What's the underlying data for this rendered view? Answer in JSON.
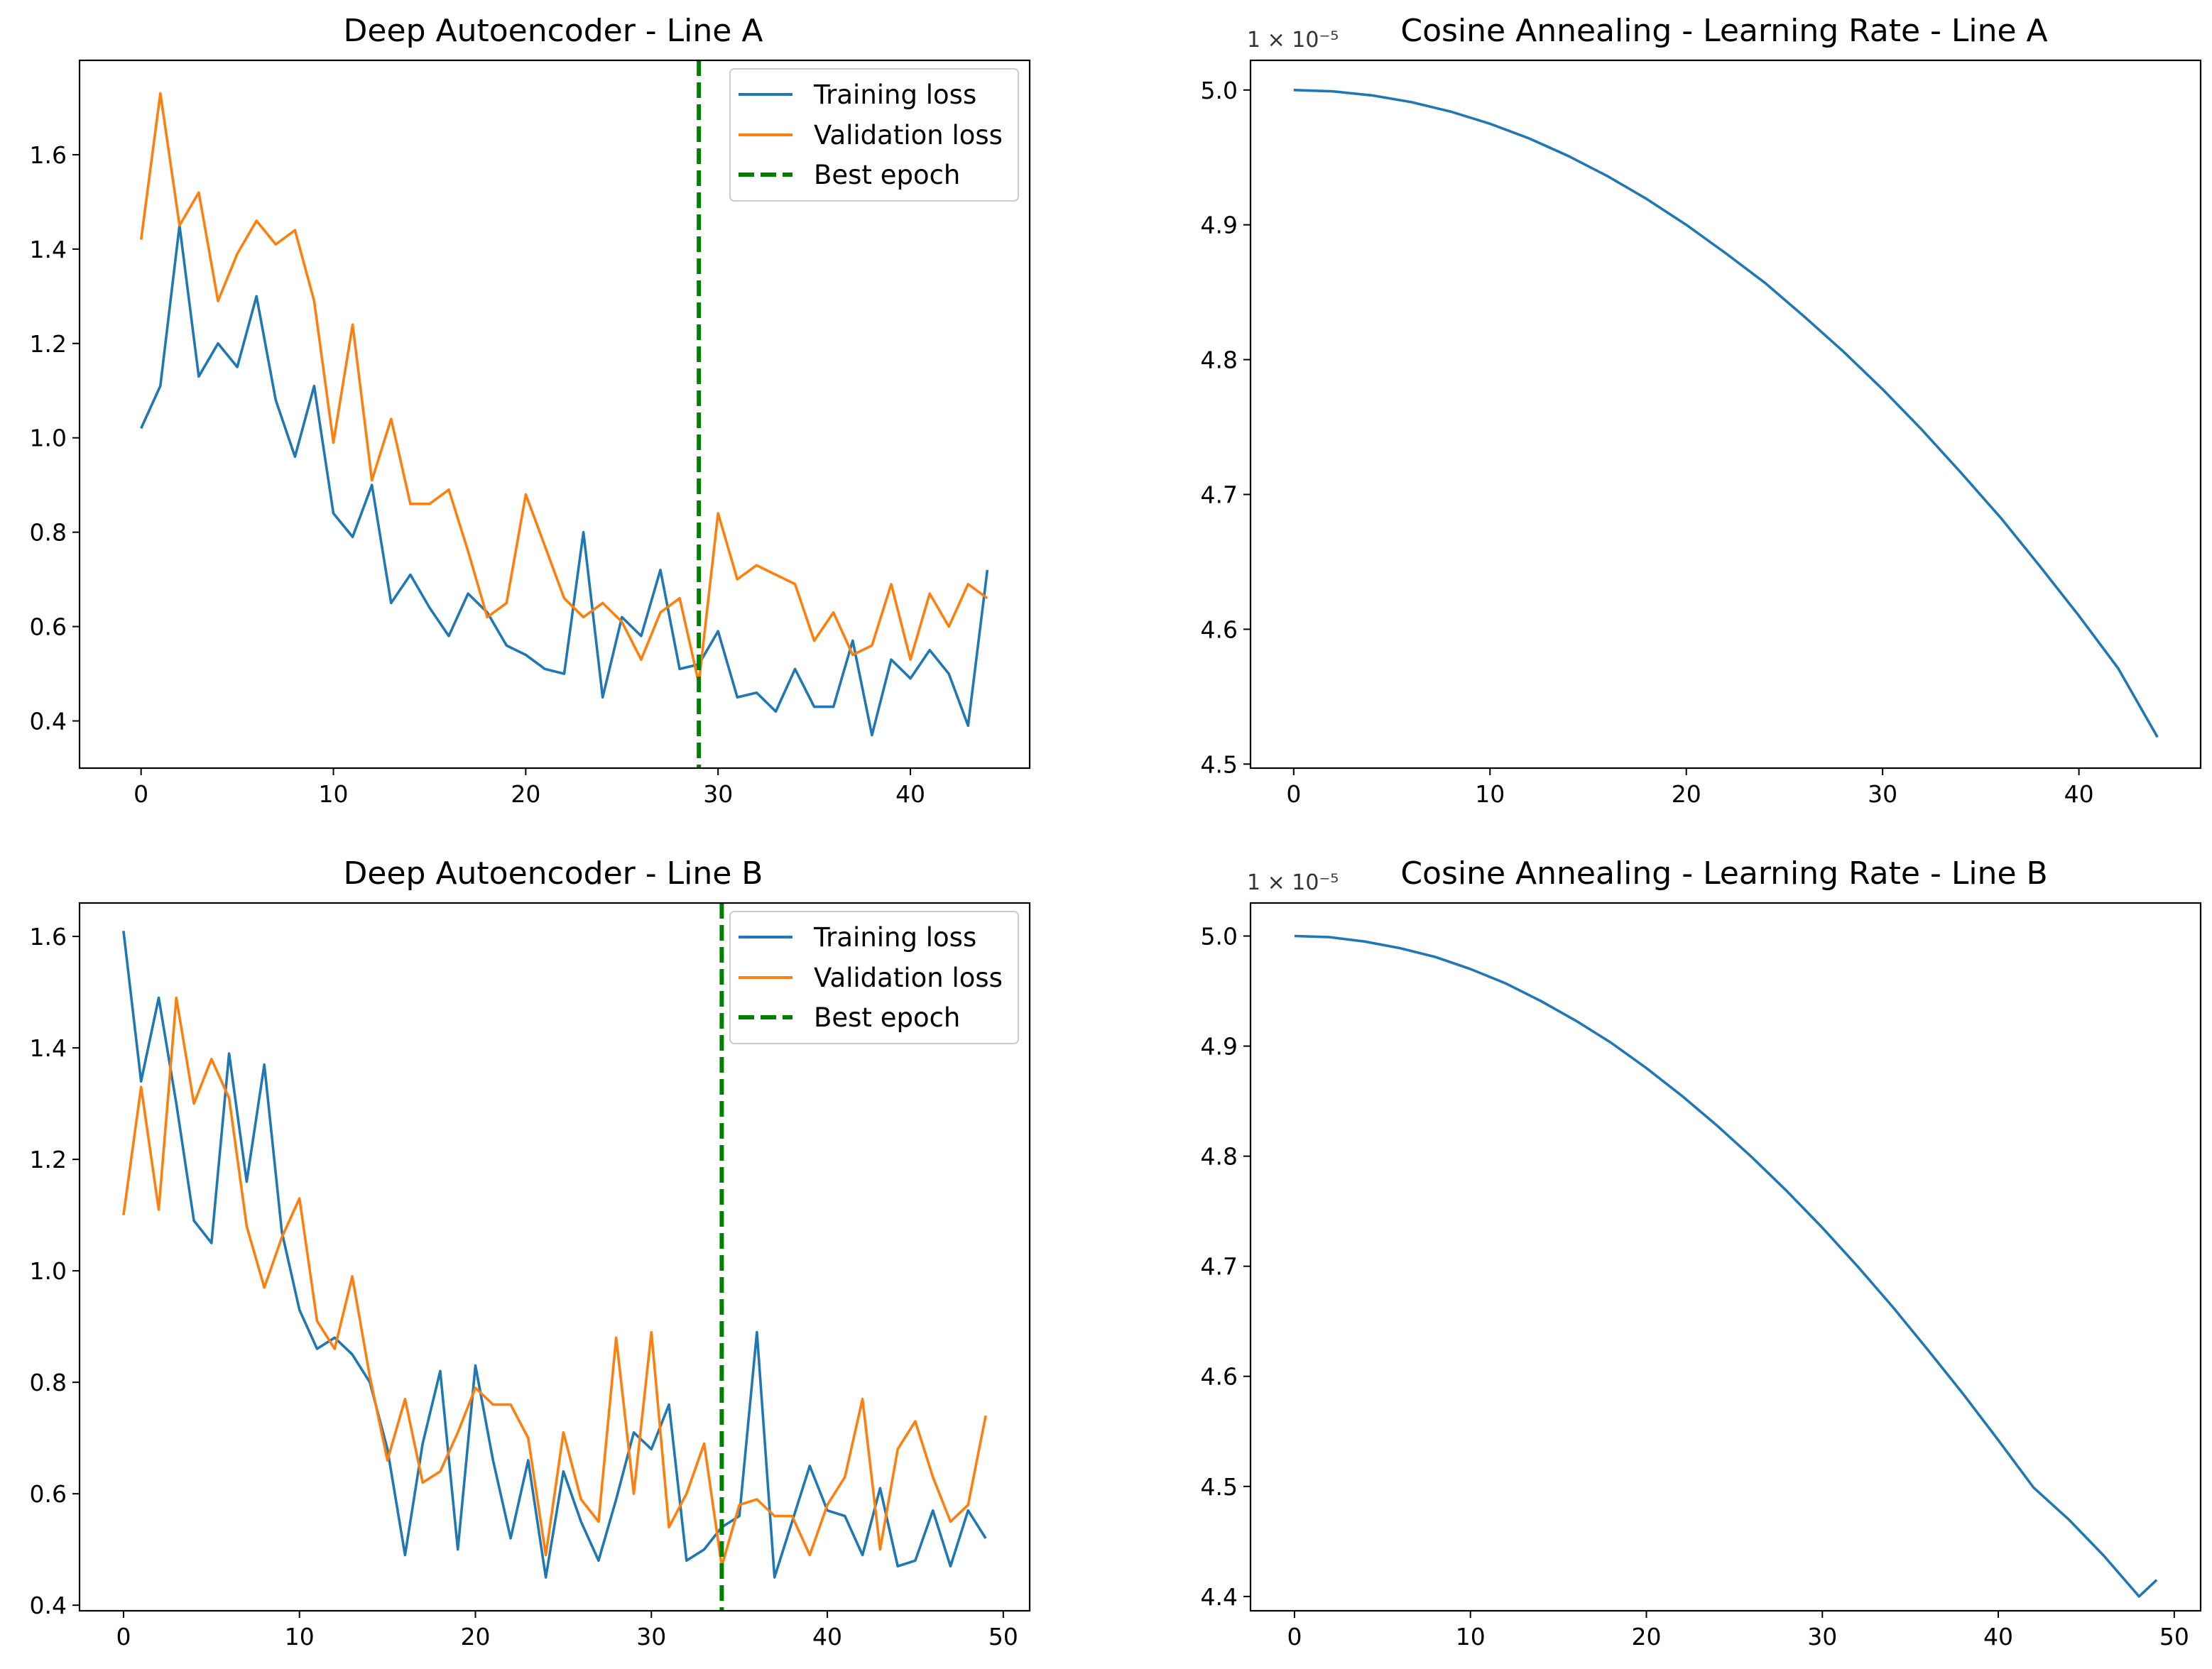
{
  "colors": {
    "training": "#1f77b4",
    "validation": "#ff7f0e",
    "best_epoch": "#008000",
    "learning_rate": "#1f77b4"
  },
  "chart_data": [
    {
      "type": "line",
      "title": "Deep Autoencoder - Line A",
      "xlabel": "",
      "ylabel": "",
      "xlim": [
        -3.2,
        46.2
      ],
      "ylim": [
        0.3,
        1.8
      ],
      "xticks": [
        0,
        10,
        20,
        30,
        40
      ],
      "xtick_labels": [
        "0",
        "10",
        "20",
        "30",
        "40"
      ],
      "yticks": [
        0.4,
        0.6,
        0.8,
        1.0,
        1.2,
        1.4,
        1.6
      ],
      "ytick_labels": [
        "0.4",
        "0.6",
        "0.8",
        "1.0",
        "1.2",
        "1.4",
        "1.6"
      ],
      "grid": false,
      "legend_position": "upper right",
      "legend": [
        "Training loss",
        "Validation loss",
        "Best epoch"
      ],
      "best_epoch": 29,
      "series": [
        {
          "name": "Training loss",
          "color_key": "training",
          "x": [
            0,
            1,
            2,
            3,
            4,
            5,
            6,
            7,
            8,
            9,
            10,
            11,
            12,
            13,
            14,
            15,
            16,
            17,
            18,
            19,
            20,
            21,
            22,
            23,
            24,
            25,
            26,
            27,
            28,
            29,
            30,
            31,
            32,
            33,
            34,
            35,
            36,
            37,
            38,
            39,
            40,
            41,
            42,
            43,
            44
          ],
          "values": [
            1.02,
            1.11,
            1.45,
            1.13,
            1.2,
            1.15,
            1.3,
            1.08,
            0.96,
            1.11,
            0.84,
            0.79,
            0.9,
            0.65,
            0.71,
            0.64,
            0.58,
            0.67,
            0.63,
            0.56,
            0.54,
            0.51,
            0.5,
            0.8,
            0.45,
            0.62,
            0.58,
            0.72,
            0.51,
            0.52,
            0.59,
            0.45,
            0.46,
            0.42,
            0.51,
            0.43,
            0.43,
            0.57,
            0.37,
            0.53,
            0.49,
            0.55,
            0.5,
            0.39,
            0.72
          ]
        },
        {
          "name": "Validation loss",
          "color_key": "validation",
          "x": [
            0,
            1,
            2,
            3,
            4,
            5,
            6,
            7,
            8,
            9,
            10,
            11,
            12,
            13,
            14,
            15,
            16,
            17,
            18,
            19,
            20,
            21,
            22,
            23,
            24,
            25,
            26,
            27,
            28,
            29,
            30,
            31,
            32,
            33,
            34,
            35,
            36,
            37,
            38,
            39,
            40,
            41,
            42,
            43,
            44
          ],
          "values": [
            1.42,
            1.73,
            1.45,
            1.52,
            1.29,
            1.39,
            1.46,
            1.41,
            1.44,
            1.29,
            0.99,
            1.24,
            0.91,
            1.04,
            0.86,
            0.86,
            0.89,
            0.76,
            0.62,
            0.65,
            0.88,
            0.77,
            0.66,
            0.62,
            0.65,
            0.61,
            0.53,
            0.63,
            0.66,
            0.48,
            0.84,
            0.7,
            0.73,
            0.71,
            0.69,
            0.57,
            0.63,
            0.54,
            0.56,
            0.69,
            0.53,
            0.67,
            0.6,
            0.69,
            0.66
          ]
        }
      ]
    },
    {
      "type": "line",
      "title": "Cosine Annealing - Learning Rate - Line A",
      "xlabel": "",
      "ylabel": "",
      "offset_label": "1 × 10⁻⁵",
      "xlim": [
        -2.2,
        46.2
      ],
      "ylim": [
        4.497,
        5.022
      ],
      "xticks": [
        0,
        10,
        20,
        30,
        40
      ],
      "xtick_labels": [
        "0",
        "10",
        "20",
        "30",
        "40"
      ],
      "yticks": [
        4.5,
        4.6,
        4.7,
        4.8,
        4.9,
        5.0
      ],
      "ytick_labels": [
        "4.5",
        "4.6",
        "4.7",
        "4.8",
        "4.9",
        "5.0"
      ],
      "grid": false,
      "series": [
        {
          "color_key": "learning_rate",
          "x": [
            0,
            2,
            4,
            6,
            8,
            10,
            12,
            14,
            16,
            18,
            20,
            22,
            24,
            26,
            28,
            30,
            32,
            34,
            36,
            38,
            40,
            42,
            44
          ],
          "values": [
            5.0,
            4.999,
            4.996,
            4.991,
            4.984,
            4.975,
            4.964,
            4.951,
            4.936,
            4.919,
            4.9,
            4.879,
            4.857,
            4.832,
            4.806,
            4.778,
            4.748,
            4.716,
            4.683,
            4.647,
            4.61,
            4.571,
            4.52
          ]
        }
      ]
    },
    {
      "type": "line",
      "title": "Deep Autoencoder - Line B",
      "xlabel": "",
      "ylabel": "",
      "xlim": [
        -2.5,
        51.5
      ],
      "ylim": [
        0.39,
        1.66
      ],
      "xticks": [
        0,
        10,
        20,
        30,
        40,
        50
      ],
      "xtick_labels": [
        "0",
        "10",
        "20",
        "30",
        "40",
        "50"
      ],
      "yticks": [
        0.4,
        0.6,
        0.8,
        1.0,
        1.2,
        1.4,
        1.6
      ],
      "ytick_labels": [
        "0.4",
        "0.6",
        "0.8",
        "1.0",
        "1.2",
        "1.4",
        "1.6"
      ],
      "grid": false,
      "legend_position": "upper right",
      "legend": [
        "Training loss",
        "Validation loss",
        "Best epoch"
      ],
      "best_epoch": 34,
      "series": [
        {
          "name": "Training loss",
          "color_key": "training",
          "x": [
            0,
            1,
            2,
            3,
            4,
            5,
            6,
            7,
            8,
            9,
            10,
            11,
            12,
            13,
            14,
            15,
            16,
            17,
            18,
            19,
            20,
            21,
            22,
            23,
            24,
            25,
            26,
            27,
            28,
            29,
            30,
            31,
            32,
            33,
            34,
            35,
            36,
            37,
            38,
            39,
            40,
            41,
            42,
            43,
            44,
            45,
            46,
            47,
            48,
            49
          ],
          "values": [
            1.61,
            1.34,
            1.49,
            1.3,
            1.09,
            1.05,
            1.39,
            1.16,
            1.37,
            1.07,
            0.93,
            0.86,
            0.88,
            0.85,
            0.8,
            0.68,
            0.49,
            0.69,
            0.82,
            0.5,
            0.83,
            0.66,
            0.52,
            0.66,
            0.45,
            0.64,
            0.55,
            0.48,
            0.59,
            0.71,
            0.68,
            0.76,
            0.48,
            0.5,
            0.54,
            0.56,
            0.89,
            0.45,
            0.55,
            0.65,
            0.57,
            0.56,
            0.49,
            0.61,
            0.47,
            0.48,
            0.57,
            0.47,
            0.57,
            0.52
          ]
        },
        {
          "name": "Validation loss",
          "color_key": "validation",
          "x": [
            0,
            1,
            2,
            3,
            4,
            5,
            6,
            7,
            8,
            9,
            10,
            11,
            12,
            13,
            14,
            15,
            16,
            17,
            18,
            19,
            20,
            21,
            22,
            23,
            24,
            25,
            26,
            27,
            28,
            29,
            30,
            31,
            32,
            33,
            34,
            35,
            36,
            37,
            38,
            39,
            40,
            41,
            42,
            43,
            44,
            45,
            46,
            47,
            48,
            49
          ],
          "values": [
            1.1,
            1.33,
            1.11,
            1.49,
            1.3,
            1.38,
            1.31,
            1.08,
            0.97,
            1.06,
            1.13,
            0.91,
            0.86,
            0.99,
            0.81,
            0.66,
            0.77,
            0.62,
            0.64,
            0.71,
            0.79,
            0.76,
            0.76,
            0.7,
            0.49,
            0.71,
            0.59,
            0.55,
            0.88,
            0.6,
            0.89,
            0.54,
            0.6,
            0.69,
            0.47,
            0.58,
            0.59,
            0.56,
            0.56,
            0.49,
            0.58,
            0.63,
            0.77,
            0.5,
            0.68,
            0.73,
            0.63,
            0.55,
            0.58,
            0.74
          ]
        }
      ]
    },
    {
      "type": "line",
      "title": "Cosine Annealing - Learning Rate - Line B",
      "xlabel": "",
      "ylabel": "",
      "offset_label": "1 × 10⁻⁵",
      "xlim": [
        -2.5,
        51.5
      ],
      "ylim": [
        4.387,
        5.03
      ],
      "xticks": [
        0,
        10,
        20,
        30,
        40,
        50
      ],
      "xtick_labels": [
        "0",
        "10",
        "20",
        "30",
        "40",
        "50"
      ],
      "yticks": [
        4.4,
        4.5,
        4.6,
        4.7,
        4.8,
        4.9,
        5.0
      ],
      "ytick_labels": [
        "4.4",
        "4.5",
        "4.6",
        "4.7",
        "4.8",
        "4.9",
        "5.0"
      ],
      "grid": false,
      "series": [
        {
          "color_key": "learning_rate",
          "x": [
            0,
            2,
            4,
            6,
            8,
            10,
            12,
            14,
            16,
            18,
            20,
            22,
            24,
            26,
            28,
            30,
            32,
            34,
            36,
            38,
            40,
            42,
            44,
            46,
            48,
            49
          ],
          "values": [
            5.0,
            4.999,
            4.995,
            4.989,
            4.981,
            4.97,
            4.957,
            4.941,
            4.923,
            4.903,
            4.88,
            4.855,
            4.828,
            4.799,
            4.768,
            4.735,
            4.7,
            4.663,
            4.624,
            4.584,
            4.542,
            4.499,
            4.47,
            4.437,
            4.4,
            4.415
          ]
        }
      ]
    }
  ]
}
